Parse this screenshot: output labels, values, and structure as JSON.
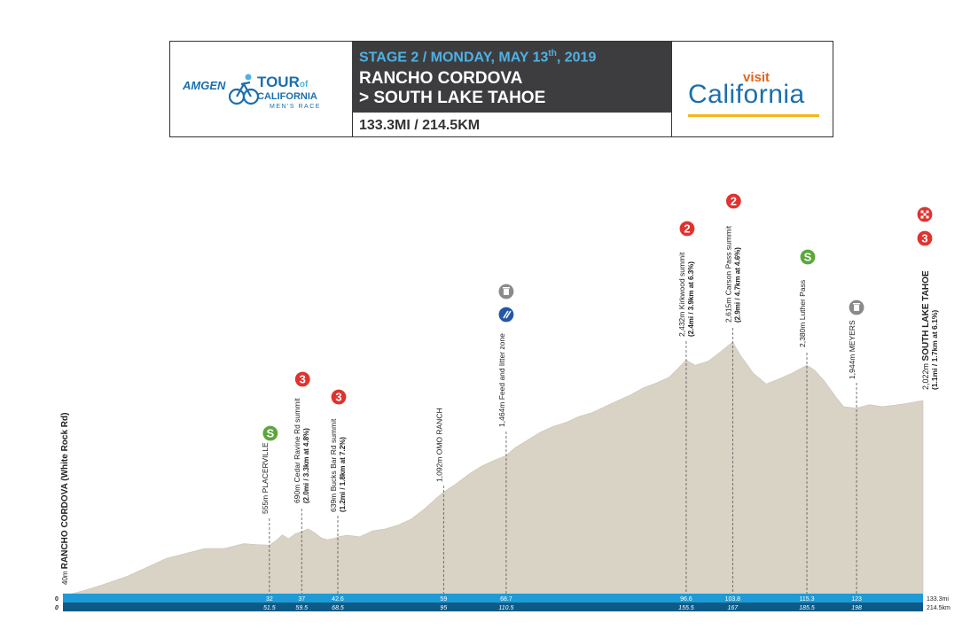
{
  "header": {
    "stage_prefix": "STAGE 2 / MONDAY, MAY 13",
    "stage_sup": "th",
    "stage_suffix": ", 2019",
    "route_line1": "RANCHO CORDOVA",
    "route_line2": "> SOUTH LAKE TAHOE",
    "distance": "133.3MI / 214.5KM",
    "sponsor_left": {
      "amgen": "AMGEN",
      "tour": "TOUR",
      "of": "of",
      "california": "CALIFORNIA",
      "mens_race": "MEN'S RACE"
    },
    "sponsor_right": {
      "visit": "visit",
      "california": "California"
    }
  },
  "colors": {
    "profile_fill": "#d9d3c6",
    "mile_bar": "#1e9ad6",
    "km_bar": "#0d5a86",
    "title_box": "#3d3d3f",
    "stage_text": "#4fb1e3",
    "kom_badge": "#e0332f",
    "sprint_badge": "#5aa83a",
    "feed_badge": "#2557a7",
    "litter_badge": "#8a8a8a"
  },
  "chart_data": {
    "type": "area",
    "title": "",
    "xlabel": "",
    "ylabel": "",
    "xlim_mi": [
      0,
      133.3
    ],
    "elevation_profile_m": {
      "x_mi": [
        0,
        3,
        6,
        10,
        13,
        16,
        19,
        22,
        25,
        28,
        30,
        32,
        33,
        34,
        35,
        36,
        37,
        38,
        39,
        40,
        41,
        42,
        42.6,
        44,
        46,
        48,
        50,
        52,
        54,
        56,
        58,
        59,
        61,
        63,
        65,
        67,
        68.7,
        70,
        72,
        74,
        76,
        78,
        80,
        82,
        84,
        86,
        88,
        90,
        92,
        94,
        96.6,
        98,
        100,
        102,
        103.8,
        105,
        107,
        109,
        111,
        113,
        115.3,
        116.5,
        118,
        120,
        121,
        123,
        125,
        127,
        129,
        131,
        133.3
      ],
      "elev_m": [
        40,
        90,
        150,
        240,
        330,
        420,
        470,
        520,
        520,
        570,
        560,
        555,
        600,
        660,
        620,
        670,
        690,
        720,
        680,
        630,
        610,
        625,
        639,
        655,
        640,
        700,
        720,
        760,
        820,
        920,
        1040,
        1092,
        1180,
        1280,
        1360,
        1420,
        1464,
        1540,
        1620,
        1700,
        1760,
        1800,
        1860,
        1900,
        1960,
        2020,
        2080,
        2150,
        2200,
        2260,
        2432,
        2380,
        2420,
        2520,
        2615,
        2480,
        2300,
        2190,
        2240,
        2300,
        2380,
        2330,
        2220,
        2040,
        1960,
        1944,
        1980,
        1960,
        1975,
        1995,
        2022
      ]
    },
    "landmarks": [
      {
        "x_mi": 0,
        "name": "RANCHO CORDOVA (White Rock Rd)",
        "elev": "40m",
        "type": "start"
      },
      {
        "x_mi": 32,
        "name": "PLACERVILLE",
        "elev": "555m",
        "type": "sprint",
        "badge": "S",
        "mi": "32",
        "km": "51.5"
      },
      {
        "x_mi": 37,
        "name": "Cedar Ravine Rd summit",
        "elev": "690m",
        "detail": "(2.0mi / 3.3km at 4.8%)",
        "type": "kom",
        "badge": "3",
        "mi": "37",
        "km": "59.5"
      },
      {
        "x_mi": 42.6,
        "name": "Bucks Bar Rd summit",
        "elev": "639m",
        "detail": "(1.2mi / 1.8km at 7.2%)",
        "type": "kom",
        "badge": "3",
        "mi": "42.6",
        "km": "68.5"
      },
      {
        "x_mi": 59,
        "name": "OMO RANCH",
        "elev": "1,092m",
        "type": "town",
        "mi": "59",
        "km": "95"
      },
      {
        "x_mi": 68.7,
        "name": "Feed and litter zone",
        "elev": "1,464m",
        "type": "feed",
        "mi": "68.7",
        "km": "110.5"
      },
      {
        "x_mi": 96.6,
        "name": "Kirkwood summit",
        "elev": "2,432m",
        "detail": "(2.4mi / 3.9km at 6.3%)",
        "type": "kom",
        "badge": "2",
        "mi": "96.6",
        "km": "155.5"
      },
      {
        "x_mi": 103.8,
        "name": "Carson Pass summit",
        "elev": "2,615m",
        "detail": "(2.9mi / 4.7km at 4.6%)",
        "type": "kom",
        "badge": "2",
        "mi": "103.8",
        "km": "167"
      },
      {
        "x_mi": 115.3,
        "name": "Luther Pass",
        "elev": "2,380m",
        "type": "sprint",
        "badge": "S",
        "mi": "115.3",
        "km": "185.5"
      },
      {
        "x_mi": 123,
        "name": "MEYERS",
        "elev": "1,944m",
        "type": "litter",
        "mi": "123",
        "km": "198"
      },
      {
        "x_mi": 133.3,
        "name": "SOUTH LAKE TAHOE",
        "elev": "2,022m",
        "detail": "(1.1mi / 1.7km at 6.1%)",
        "type": "finish",
        "badge": "3"
      }
    ],
    "axis_mi": {
      "start": "0",
      "end": "133.3mi"
    },
    "axis_km": {
      "start": "0",
      "end": "214.5km"
    }
  }
}
